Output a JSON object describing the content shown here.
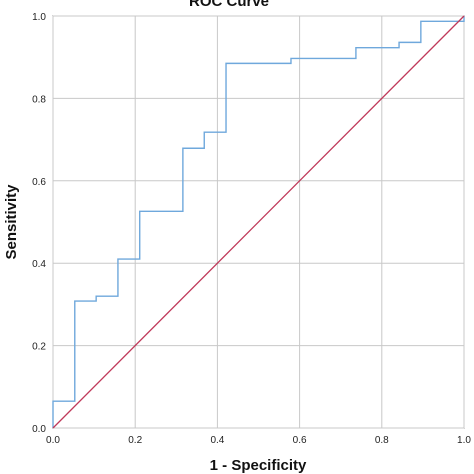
{
  "chart_data": {
    "type": "line",
    "title": "ROC Curve",
    "xlabel": "1 - Specificity",
    "ylabel": "Sensitivity",
    "xlim": [
      0,
      1
    ],
    "ylim": [
      0,
      1
    ],
    "grid": true,
    "x_ticks": [
      "0.0",
      "0.2",
      "0.4",
      "0.6",
      "0.8",
      "1.0"
    ],
    "y_ticks": [
      "0.0",
      "0.2",
      "0.4",
      "0.6",
      "0.8",
      "1.0"
    ],
    "series": [
      {
        "color": "#6fa8dc",
        "x": [
          0.0,
          0.0,
          0.053,
          0.053,
          0.105,
          0.105,
          0.158,
          0.158,
          0.211,
          0.211,
          0.316,
          0.316,
          0.368,
          0.368,
          0.421,
          0.421,
          0.579,
          0.579,
          0.737,
          0.737,
          0.842,
          0.842,
          0.895,
          0.895,
          1.0,
          1.0
        ],
        "y": [
          0.0,
          0.065,
          0.065,
          0.308,
          0.308,
          0.32,
          0.32,
          0.41,
          0.41,
          0.526,
          0.526,
          0.679,
          0.679,
          0.718,
          0.718,
          0.885,
          0.885,
          0.897,
          0.897,
          0.923,
          0.923,
          0.936,
          0.936,
          0.987,
          0.987,
          1.0
        ]
      },
      {
        "color": "#c0395a",
        "x": [
          0,
          1
        ],
        "y": [
          0,
          1
        ]
      }
    ]
  }
}
